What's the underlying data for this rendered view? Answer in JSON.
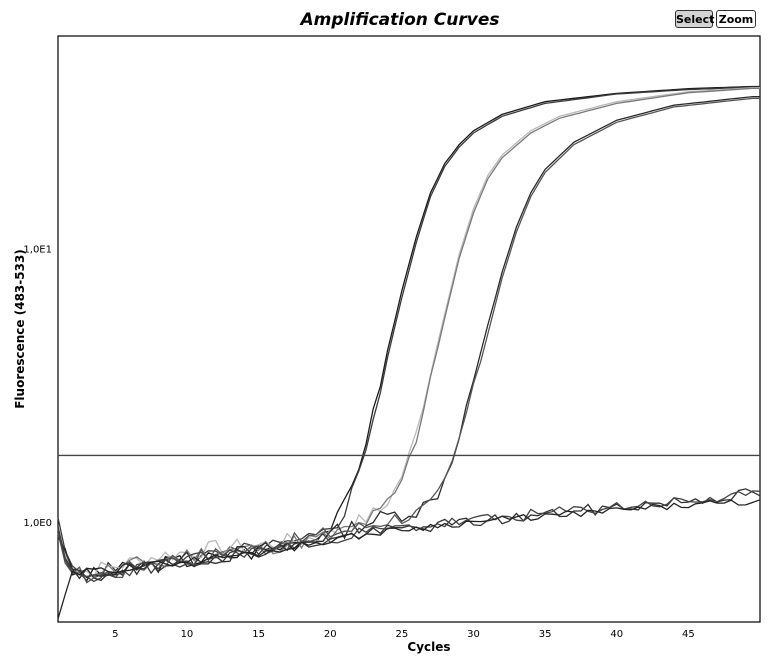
{
  "header": {
    "title": "Amplification Curves",
    "select_label": "Select",
    "zoom_label": "Zoom"
  },
  "chart_data": {
    "type": "line",
    "title": "Amplification Curves",
    "xlabel": "Cycles",
    "ylabel": "Fluorescence (483-533)",
    "xlim": [
      1,
      50
    ],
    "ylim": [
      0.43,
      60
    ],
    "yscale": "log",
    "x_ticks": [
      5,
      10,
      15,
      20,
      25,
      30,
      35,
      40,
      45
    ],
    "y_ticks": [
      {
        "value": 1,
        "label": "1,0E0"
      },
      {
        "value": 10,
        "label": "1,0E1"
      }
    ],
    "threshold": 1.75,
    "grid": false,
    "series": [
      {
        "color": "#1a1a1a",
        "noise": 0.07,
        "seed": 3,
        "values": [
          [
            1,
            0.92
          ],
          [
            1.5,
            0.75
          ],
          [
            2,
            0.65
          ],
          [
            3,
            0.63
          ],
          [
            5,
            0.66
          ],
          [
            8,
            0.7
          ],
          [
            12,
            0.74
          ],
          [
            15,
            0.78
          ],
          [
            18,
            0.85
          ],
          [
            19.5,
            0.92
          ],
          [
            20.5,
            1.02
          ],
          [
            21.2,
            1.2
          ],
          [
            21.8,
            1.5
          ],
          [
            22.5,
            2.0
          ],
          [
            23,
            2.5
          ],
          [
            23.5,
            3.2
          ],
          [
            24,
            4.2
          ],
          [
            25,
            7.0
          ],
          [
            26,
            11.0
          ],
          [
            27,
            16.0
          ],
          [
            28,
            20.5
          ],
          [
            29,
            24.0
          ],
          [
            30,
            27.0
          ],
          [
            32,
            31.0
          ],
          [
            35,
            34.5
          ],
          [
            40,
            37.0
          ],
          [
            45,
            38.5
          ],
          [
            49.5,
            39.2
          ]
        ]
      },
      {
        "color": "#3a3a3a",
        "noise": 0.07,
        "seed": 5,
        "values": [
          [
            1,
            0.98
          ],
          [
            1.5,
            0.78
          ],
          [
            2,
            0.66
          ],
          [
            3,
            0.64
          ],
          [
            5,
            0.67
          ],
          [
            8,
            0.69
          ],
          [
            12,
            0.75
          ],
          [
            15,
            0.8
          ],
          [
            18,
            0.83
          ],
          [
            19.5,
            0.9
          ],
          [
            20.5,
            1.0
          ],
          [
            21.2,
            1.15
          ],
          [
            21.8,
            1.4
          ],
          [
            22.5,
            1.9
          ],
          [
            23,
            2.4
          ],
          [
            23.5,
            3.0
          ],
          [
            24,
            4.0
          ],
          [
            25,
            6.6
          ],
          [
            26,
            10.5
          ],
          [
            27,
            15.5
          ],
          [
            28,
            20.0
          ],
          [
            29,
            23.5
          ],
          [
            30,
            26.5
          ],
          [
            32,
            30.5
          ],
          [
            35,
            34.0
          ],
          [
            40,
            36.8
          ],
          [
            45,
            38.2
          ],
          [
            49.5,
            39.0
          ]
        ]
      },
      {
        "color": "#b8b8b8",
        "noise": 0.07,
        "seed": 7,
        "values": [
          [
            1,
            0.95
          ],
          [
            1.5,
            0.8
          ],
          [
            2,
            0.68
          ],
          [
            3,
            0.66
          ],
          [
            5,
            0.69
          ],
          [
            8,
            0.75
          ],
          [
            12,
            0.8
          ],
          [
            15,
            0.82
          ],
          [
            18,
            0.86
          ],
          [
            20,
            0.9
          ],
          [
            22,
            1.0
          ],
          [
            23.5,
            1.1
          ],
          [
            24.5,
            1.3
          ],
          [
            25.3,
            1.6
          ],
          [
            26,
            2.1
          ],
          [
            26.5,
            2.7
          ],
          [
            27,
            3.5
          ],
          [
            28,
            5.8
          ],
          [
            29,
            9.5
          ],
          [
            30,
            14.0
          ],
          [
            31,
            18.5
          ],
          [
            32,
            22.0
          ],
          [
            34,
            27.0
          ],
          [
            36,
            30.5
          ],
          [
            40,
            34.5
          ],
          [
            45,
            37.5
          ],
          [
            49.5,
            38.8
          ]
        ]
      },
      {
        "color": "#7a7a7a",
        "noise": 0.07,
        "seed": 11,
        "values": [
          [
            1,
            0.9
          ],
          [
            1.5,
            0.76
          ],
          [
            2,
            0.7
          ],
          [
            3,
            0.65
          ],
          [
            5,
            0.67
          ],
          [
            8,
            0.73
          ],
          [
            12,
            0.78
          ],
          [
            15,
            0.8
          ],
          [
            18,
            0.85
          ],
          [
            20,
            0.88
          ],
          [
            22,
            0.97
          ],
          [
            23.5,
            1.08
          ],
          [
            24.5,
            1.25
          ],
          [
            25.3,
            1.55
          ],
          [
            26,
            2.0
          ],
          [
            26.5,
            2.6
          ],
          [
            27,
            3.4
          ],
          [
            28,
            5.6
          ],
          [
            29,
            9.2
          ],
          [
            30,
            13.5
          ],
          [
            31,
            18.0
          ],
          [
            32,
            21.5
          ],
          [
            34,
            26.5
          ],
          [
            36,
            30.0
          ],
          [
            40,
            34.0
          ],
          [
            45,
            37.2
          ],
          [
            49.5,
            38.6
          ]
        ]
      },
      {
        "color": "#2a2a2a",
        "noise": 0.07,
        "seed": 13,
        "values": [
          [
            1,
            0.88
          ],
          [
            1.5,
            0.74
          ],
          [
            2,
            0.67
          ],
          [
            3,
            0.64
          ],
          [
            5,
            0.66
          ],
          [
            8,
            0.7
          ],
          [
            12,
            0.75
          ],
          [
            15,
            0.78
          ],
          [
            18,
            0.84
          ],
          [
            20,
            0.9
          ],
          [
            22,
            0.97
          ],
          [
            24,
            1.05
          ],
          [
            26,
            1.1
          ],
          [
            27,
            1.18
          ],
          [
            27.8,
            1.35
          ],
          [
            28.5,
            1.7
          ],
          [
            29,
            2.1
          ],
          [
            29.5,
            2.6
          ],
          [
            30,
            3.3
          ],
          [
            31,
            5.2
          ],
          [
            32,
            8.2
          ],
          [
            33,
            12.0
          ],
          [
            34,
            16.0
          ],
          [
            35,
            19.5
          ],
          [
            37,
            24.5
          ],
          [
            40,
            29.5
          ],
          [
            44,
            33.5
          ],
          [
            49.5,
            36.0
          ]
        ]
      },
      {
        "color": "#555555",
        "noise": 0.07,
        "seed": 17,
        "values": [
          [
            1,
            0.86
          ],
          [
            1.5,
            0.75
          ],
          [
            2,
            0.66
          ],
          [
            3,
            0.63
          ],
          [
            5,
            0.65
          ],
          [
            8,
            0.72
          ],
          [
            12,
            0.76
          ],
          [
            15,
            0.8
          ],
          [
            18,
            0.86
          ],
          [
            20,
            0.91
          ],
          [
            22,
            0.95
          ],
          [
            24,
            1.02
          ],
          [
            26,
            1.07
          ],
          [
            27,
            1.14
          ],
          [
            27.8,
            1.3
          ],
          [
            28.5,
            1.62
          ],
          [
            29,
            2.0
          ],
          [
            29.5,
            2.5
          ],
          [
            30,
            3.1
          ],
          [
            31,
            4.9
          ],
          [
            32,
            7.8
          ],
          [
            33,
            11.5
          ],
          [
            34,
            15.5
          ],
          [
            35,
            19.0
          ],
          [
            37,
            24.0
          ],
          [
            40,
            29.0
          ],
          [
            44,
            33.0
          ],
          [
            49.5,
            35.5
          ]
        ]
      },
      {
        "color": "#333333",
        "noise": 0.05,
        "seed": 19,
        "values": [
          [
            1,
            0.95
          ],
          [
            1.5,
            0.72
          ],
          [
            2,
            0.65
          ],
          [
            3,
            0.64
          ],
          [
            5,
            0.66
          ],
          [
            8,
            0.69
          ],
          [
            12,
            0.74
          ],
          [
            15,
            0.78
          ],
          [
            18,
            0.82
          ],
          [
            20,
            0.86
          ],
          [
            22,
            0.9
          ],
          [
            25,
            0.94
          ],
          [
            30,
            1.0
          ],
          [
            35,
            1.06
          ],
          [
            40,
            1.13
          ],
          [
            45,
            1.2
          ],
          [
            48,
            1.25
          ],
          [
            49.5,
            1.27
          ]
        ]
      },
      {
        "color": "#444444",
        "noise": 0.05,
        "seed": 23,
        "values": [
          [
            1,
            0.9
          ],
          [
            1.5,
            0.7
          ],
          [
            2,
            0.64
          ],
          [
            3,
            0.63
          ],
          [
            5,
            0.65
          ],
          [
            8,
            0.7
          ],
          [
            12,
            0.75
          ],
          [
            15,
            0.79
          ],
          [
            18,
            0.84
          ],
          [
            20,
            0.87
          ],
          [
            22,
            0.91
          ],
          [
            25,
            0.95
          ],
          [
            30,
            1.01
          ],
          [
            35,
            1.07
          ],
          [
            40,
            1.14
          ],
          [
            45,
            1.19
          ],
          [
            48,
            1.22
          ],
          [
            49.5,
            1.24
          ]
        ]
      },
      {
        "color": "#222222",
        "noise": 0.03,
        "seed": 29,
        "values": [
          [
            1,
            0.43
          ],
          [
            1.3,
            0.5
          ],
          [
            1.7,
            0.58
          ],
          [
            2,
            0.64
          ],
          [
            3,
            0.66
          ],
          [
            5,
            0.67
          ],
          [
            8,
            0.7
          ],
          [
            12,
            0.74
          ],
          [
            15,
            0.77
          ],
          [
            18,
            0.82
          ],
          [
            20,
            0.86
          ],
          [
            22,
            0.89
          ],
          [
            25,
            0.94
          ],
          [
            30,
            1.0
          ],
          [
            35,
            1.05
          ],
          [
            40,
            1.1
          ],
          [
            45,
            1.15
          ],
          [
            49.5,
            1.18
          ]
        ]
      }
    ]
  }
}
